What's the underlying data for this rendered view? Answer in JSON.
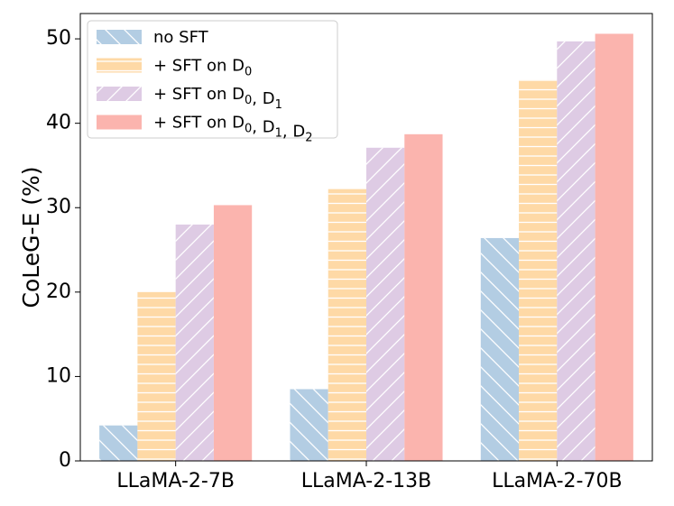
{
  "chart_data": {
    "type": "bar",
    "title": "",
    "xlabel": "",
    "ylabel": "CoLeG-E (%)",
    "ylim": [
      0,
      53
    ],
    "yticks": [
      0,
      10,
      20,
      30,
      40,
      50
    ],
    "categories": [
      "LLaMA-2-7B",
      "LLaMA-2-13B",
      "LLaMA-2-70B"
    ],
    "legend_position": "top-left",
    "series": [
      {
        "name": "no SFT",
        "label_parts": [
          [
            "no SFT",
            ""
          ]
        ],
        "values": [
          4.2,
          8.5,
          26.4
        ],
        "color": "#b3cde3",
        "hatch": "backslash"
      },
      {
        "name": "+ SFT on D0",
        "label_parts": [
          [
            "+ SFT on D",
            "0"
          ]
        ],
        "values": [
          20.0,
          32.2,
          45.1
        ],
        "color": "#fed9a6",
        "hatch": "horizontal"
      },
      {
        "name": "+ SFT on D0, D1",
        "label_parts": [
          [
            "+ SFT on D",
            "0"
          ],
          [
            ", D",
            "1"
          ]
        ],
        "values": [
          28.0,
          37.1,
          49.7
        ],
        "color": "#decbe4",
        "hatch": "slash"
      },
      {
        "name": "+ SFT on D0, D1, D2",
        "label_parts": [
          [
            "+ SFT on D",
            "0"
          ],
          [
            ", D",
            "1"
          ],
          [
            ", D",
            "2"
          ]
        ],
        "values": [
          30.3,
          38.7,
          50.6
        ],
        "color": "#fbb4ae",
        "hatch": "none"
      }
    ]
  }
}
